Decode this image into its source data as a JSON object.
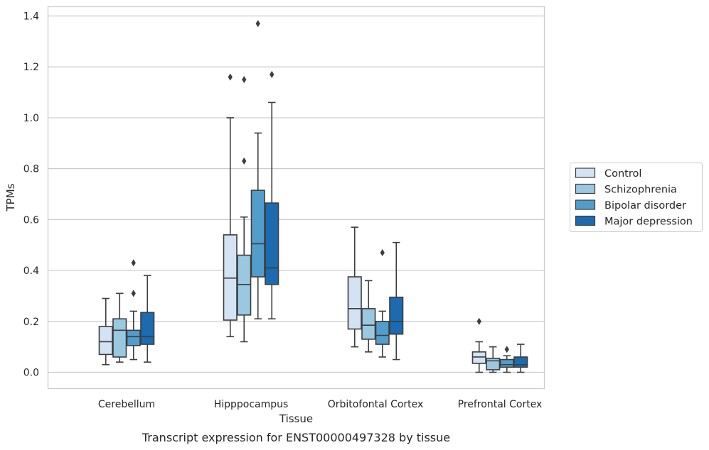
{
  "caption": "Transcript expression for ENST00000497328 by tissue",
  "chart_data": {
    "type": "box",
    "xlabel": "Tissue",
    "ylabel": "TPMs",
    "ylim": [
      -0.065,
      1.44
    ],
    "yticks": [
      "0.0",
      "0.2",
      "0.4",
      "0.6",
      "0.8",
      "1.0",
      "1.2",
      "1.4"
    ],
    "ytick_values": [
      0,
      0.2,
      0.4,
      0.6,
      0.8,
      1.0,
      1.2,
      1.4
    ],
    "grid": true,
    "legend_position": "right",
    "categories": [
      "Cerebellum",
      "Hipppocampus",
      "Orbitofontal Cortex",
      "Prefrontal Cortex"
    ],
    "series": [
      {
        "name": "Control",
        "color": "#d3e3f3",
        "boxes": [
          {
            "whisker_low": 0.03,
            "q1": 0.07,
            "median": 0.12,
            "q3": 0.18,
            "whisker_high": 0.29,
            "outliers": []
          },
          {
            "whisker_low": 0.14,
            "q1": 0.205,
            "median": 0.37,
            "q3": 0.54,
            "whisker_high": 1.0,
            "outliers": [
              1.16
            ]
          },
          {
            "whisker_low": 0.1,
            "q1": 0.17,
            "median": 0.25,
            "q3": 0.375,
            "whisker_high": 0.57,
            "outliers": []
          },
          {
            "whisker_low": 0.0,
            "q1": 0.035,
            "median": 0.06,
            "q3": 0.08,
            "whisker_high": 0.12,
            "outliers": [
              0.2
            ]
          }
        ]
      },
      {
        "name": "Schizophrenia",
        "color": "#9ac8e0",
        "boxes": [
          {
            "whisker_low": 0.04,
            "q1": 0.06,
            "median": 0.165,
            "q3": 0.21,
            "whisker_high": 0.31,
            "outliers": []
          },
          {
            "whisker_low": 0.12,
            "q1": 0.225,
            "median": 0.345,
            "q3": 0.46,
            "whisker_high": 0.61,
            "outliers": [
              0.83,
              1.15
            ]
          },
          {
            "whisker_low": 0.08,
            "q1": 0.13,
            "median": 0.185,
            "q3": 0.25,
            "whisker_high": 0.36,
            "outliers": []
          },
          {
            "whisker_low": 0.0,
            "q1": 0.01,
            "median": 0.045,
            "q3": 0.055,
            "whisker_high": 0.1,
            "outliers": []
          }
        ]
      },
      {
        "name": "Bipolar disorder",
        "color": "#529dcc",
        "boxes": [
          {
            "whisker_low": 0.05,
            "q1": 0.105,
            "median": 0.14,
            "q3": 0.165,
            "whisker_high": 0.24,
            "outliers": [
              0.31,
              0.43
            ]
          },
          {
            "whisker_low": 0.21,
            "q1": 0.375,
            "median": 0.505,
            "q3": 0.715,
            "whisker_high": 0.94,
            "outliers": [
              1.37
            ]
          },
          {
            "whisker_low": 0.06,
            "q1": 0.11,
            "median": 0.145,
            "q3": 0.2,
            "whisker_high": 0.24,
            "outliers": [
              0.47
            ]
          },
          {
            "whisker_low": 0.0,
            "q1": 0.02,
            "median": 0.03,
            "q3": 0.05,
            "whisker_high": 0.065,
            "outliers": [
              0.09
            ]
          }
        ]
      },
      {
        "name": "Major depression",
        "color": "#1c6aaf",
        "boxes": [
          {
            "whisker_low": 0.04,
            "q1": 0.11,
            "median": 0.14,
            "q3": 0.235,
            "whisker_high": 0.38,
            "outliers": []
          },
          {
            "whisker_low": 0.21,
            "q1": 0.345,
            "median": 0.41,
            "q3": 0.665,
            "whisker_high": 1.06,
            "outliers": [
              1.17
            ]
          },
          {
            "whisker_low": 0.05,
            "q1": 0.15,
            "median": 0.2,
            "q3": 0.295,
            "whisker_high": 0.51,
            "outliers": []
          },
          {
            "whisker_low": 0.0,
            "q1": 0.02,
            "median": 0.03,
            "q3": 0.06,
            "whisker_high": 0.11,
            "outliers": []
          }
        ]
      }
    ]
  }
}
